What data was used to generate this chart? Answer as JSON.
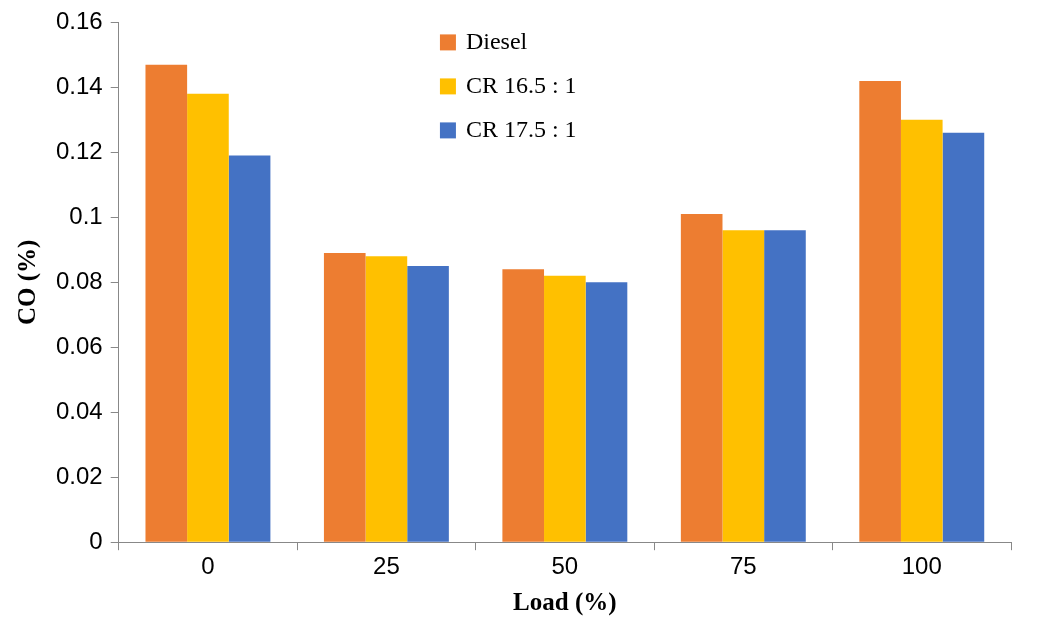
{
  "chart_data": {
    "type": "bar",
    "xlabel": "Load (%)",
    "ylabel": "CO (%)",
    "categories": [
      "0",
      "25",
      "50",
      "75",
      "100"
    ],
    "series": [
      {
        "name": "Diesel",
        "color": "#ed7d31",
        "values": [
          0.147,
          0.089,
          0.084,
          0.101,
          0.142
        ]
      },
      {
        "name": "CR 16.5 : 1",
        "color": "#ffc000",
        "values": [
          0.138,
          0.088,
          0.082,
          0.096,
          0.13
        ]
      },
      {
        "name": "CR 17.5 : 1",
        "color": "#4472c4",
        "values": [
          0.119,
          0.085,
          0.08,
          0.096,
          0.126
        ]
      }
    ],
    "ylim": [
      0,
      0.16
    ],
    "yticks": [
      0,
      0.02,
      0.04,
      0.06,
      0.08,
      {
        "value": 0.1,
        "label": "0.1"
      },
      0.12,
      0.14,
      0.16
    ],
    "grid": false,
    "legend": "top"
  }
}
